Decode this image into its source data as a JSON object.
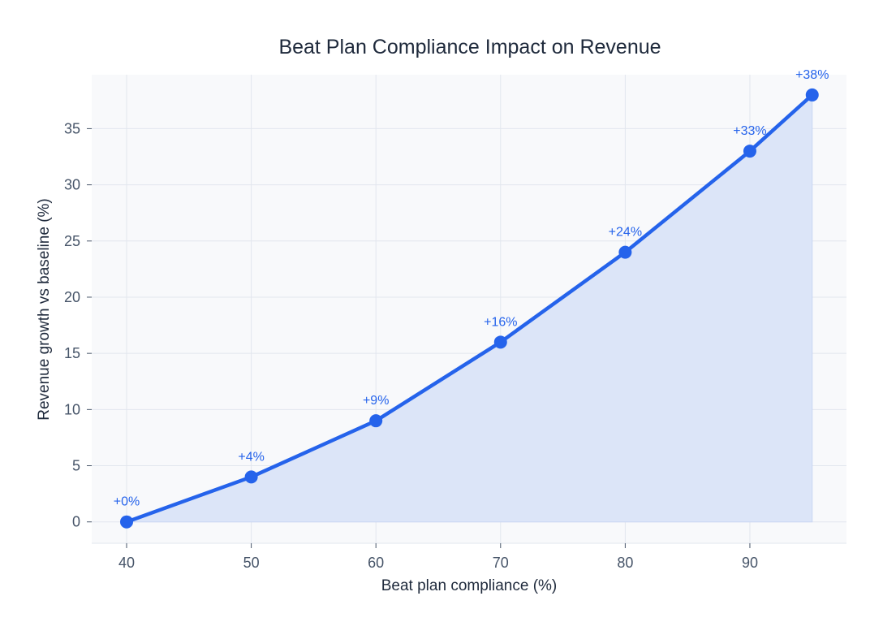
{
  "chart_data": {
    "type": "line",
    "title": "Beat Plan Compliance Impact on Revenue",
    "xlabel": "Beat plan compliance (%)",
    "ylabel": "Revenue growth vs baseline (%)",
    "x": [
      40,
      50,
      60,
      70,
      80,
      90,
      95
    ],
    "series": [
      {
        "values": [
          0,
          4,
          9,
          16,
          24,
          33,
          38
        ],
        "labels": [
          "+0%",
          "+4%",
          "+9%",
          "+16%",
          "+24%",
          "+33%",
          "+38%"
        ]
      }
    ],
    "xlim": [
      37.2,
      97.75
    ],
    "ylim": [
      -1.9,
      39.8
    ],
    "xticks": [
      40,
      50,
      60,
      70,
      80,
      90
    ],
    "yticks": [
      0,
      5,
      10,
      15,
      20,
      25,
      30,
      35
    ],
    "grid": true,
    "fill_under": true,
    "colors": {
      "line": "#2563eb",
      "fill": "#dce5f8",
      "plot_bg": "#f8f9fb",
      "grid": "#e2e6ee",
      "text": "#1e293b",
      "tick": "#475569"
    }
  }
}
